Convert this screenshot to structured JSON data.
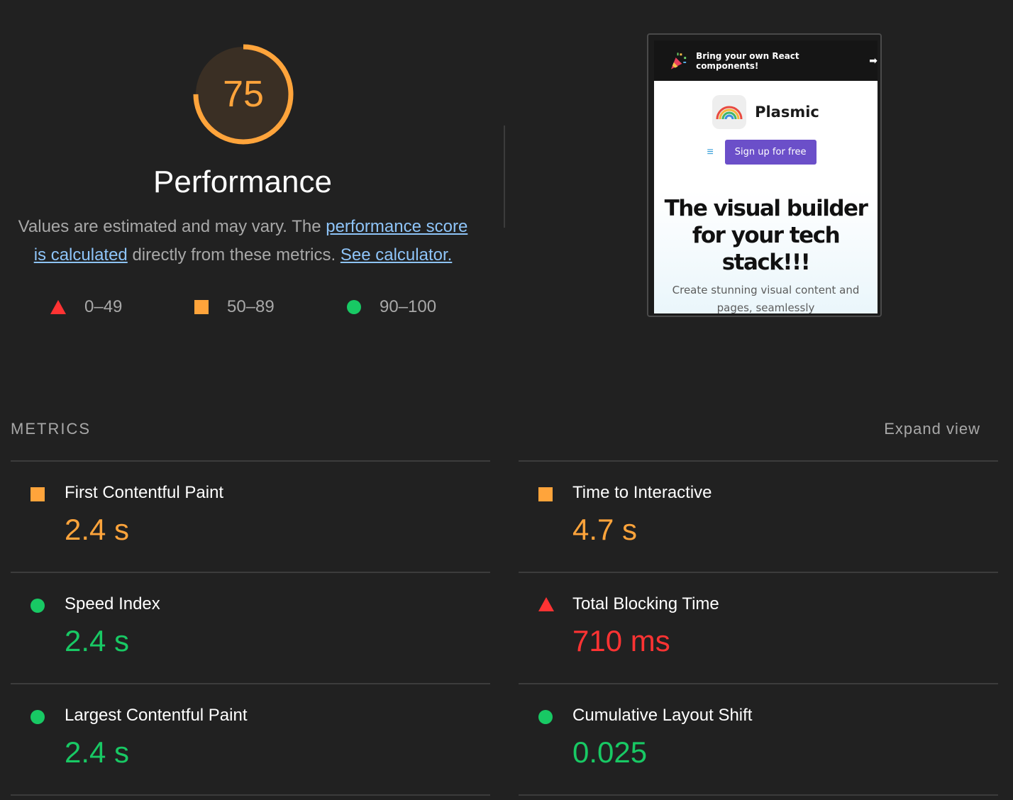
{
  "performance": {
    "score": "75",
    "score_fraction": 0.75,
    "title": "Performance",
    "description": {
      "prefix": "Values are estimated and may vary. The ",
      "link_score": "performance score is calculated",
      "middle": " directly from these metrics. ",
      "link_calculator": "See calculator."
    },
    "color": "#ffa43b"
  },
  "legend": [
    {
      "icon": "fail-triangle-icon",
      "range": "0–49"
    },
    {
      "icon": "average-square-icon",
      "range": "50–89"
    },
    {
      "icon": "pass-circle-icon",
      "range": "90–100"
    }
  ],
  "screenshot": {
    "banner_text": "Bring your own React components!",
    "banner_arrow": "➡",
    "brand_name": "Plasmic",
    "menu_glyph": "≡",
    "signup_label": "Sign up for free",
    "headline": "The visual builder for your tech stack!!!",
    "subtext": "Create stunning visual content and pages, seamlessly"
  },
  "metrics": {
    "header": "METRICS",
    "expand_label": "Expand view",
    "left": [
      {
        "icon": "average-square-icon",
        "label": "First Contentful Paint",
        "value": "2.4 s",
        "rating": "average"
      },
      {
        "icon": "pass-circle-icon",
        "label": "Speed Index",
        "value": "2.4 s",
        "rating": "pass"
      },
      {
        "icon": "pass-circle-icon",
        "label": "Largest Contentful Paint",
        "value": "2.4 s",
        "rating": "pass"
      }
    ],
    "right": [
      {
        "icon": "average-square-icon",
        "label": "Time to Interactive",
        "value": "4.7 s",
        "rating": "average"
      },
      {
        "icon": "fail-triangle-icon",
        "label": "Total Blocking Time",
        "value": "710 ms",
        "rating": "fail"
      },
      {
        "icon": "pass-circle-icon",
        "label": "Cumulative Layout Shift",
        "value": "0.025",
        "rating": "pass"
      }
    ]
  },
  "colors": {
    "fail": "#ff3333",
    "average": "#ffa43b",
    "pass": "#18c964",
    "link": "#8ec4f8",
    "background": "#212121"
  }
}
